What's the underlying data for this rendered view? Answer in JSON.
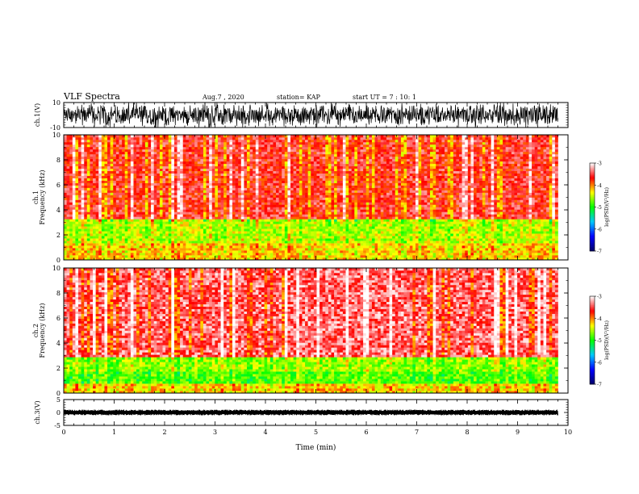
{
  "header": {
    "title": "VLF Spectra",
    "date": "Aug.7 , 2020",
    "station": "station= KAP",
    "start": "start UT = 7 : 10: 1"
  },
  "chart_data": [
    {
      "type": "line",
      "name": "waveform-ch1",
      "ylabel": "ch.1(V)",
      "ylim": [
        -10,
        10
      ],
      "yticks": [
        "10",
        "-10"
      ],
      "xlim": [
        0,
        10
      ],
      "data_extent_min": 9.8,
      "description_level": "full-scale noisy waveform"
    },
    {
      "type": "heatmap",
      "name": "spectrogram-ch1",
      "ylabel": "ch.1 Frequency (kHz)",
      "ylim": [
        0,
        10
      ],
      "yticks": [
        "0",
        "2",
        "4",
        "6",
        "8",
        "10"
      ],
      "xlim": [
        0,
        10
      ],
      "data_extent_min": 9.8,
      "bands": [
        {
          "from_khz": 0,
          "to_khz": 1.4,
          "level": -4.2
        },
        {
          "from_khz": 1.4,
          "to_khz": 2.2,
          "level": -4.5
        },
        {
          "from_khz": 2.2,
          "to_khz": 3.2,
          "level": -4.5
        },
        {
          "from_khz": 3.2,
          "to_khz": 10,
          "level": -3.6
        }
      ]
    },
    {
      "type": "heatmap",
      "name": "spectrogram-ch2",
      "ylabel": "ch.2 Frequency (kHz)",
      "ylim": [
        0,
        10
      ],
      "yticks": [
        "0",
        "2",
        "4",
        "6",
        "8",
        "10"
      ],
      "xlim": [
        0,
        10
      ],
      "data_extent_min": 9.8,
      "bands": [
        {
          "from_khz": 0,
          "to_khz": 0.8,
          "level": -4.2
        },
        {
          "from_khz": 0.8,
          "to_khz": 1.8,
          "level": -4.8
        },
        {
          "from_khz": 1.8,
          "to_khz": 2.8,
          "level": -4.6
        },
        {
          "from_khz": 2.8,
          "to_khz": 10,
          "level": -3.4
        }
      ]
    },
    {
      "type": "line",
      "name": "waveform-ch3",
      "ylabel": "ch.3(V)",
      "ylim": [
        -5,
        5
      ],
      "yticks": [
        "5",
        "0",
        "-5"
      ],
      "xlim": [
        0,
        10
      ],
      "data_extent_min": 9.8,
      "xlabel": "Time (min)",
      "xticks": [
        "0",
        "1",
        "2",
        "3",
        "4",
        "5",
        "6",
        "7",
        "8",
        "9",
        "10"
      ]
    }
  ],
  "colorbar": {
    "label": "log(PSD)(V²/Hz)",
    "range": [
      -7,
      -3
    ],
    "ticks": [
      "-3",
      "-4",
      "-5",
      "-6",
      "-7"
    ],
    "colors": [
      "#000066",
      "#0000ff",
      "#00c8ff",
      "#00ff00",
      "#ffff00",
      "#ff0000",
      "#ffffff"
    ]
  }
}
